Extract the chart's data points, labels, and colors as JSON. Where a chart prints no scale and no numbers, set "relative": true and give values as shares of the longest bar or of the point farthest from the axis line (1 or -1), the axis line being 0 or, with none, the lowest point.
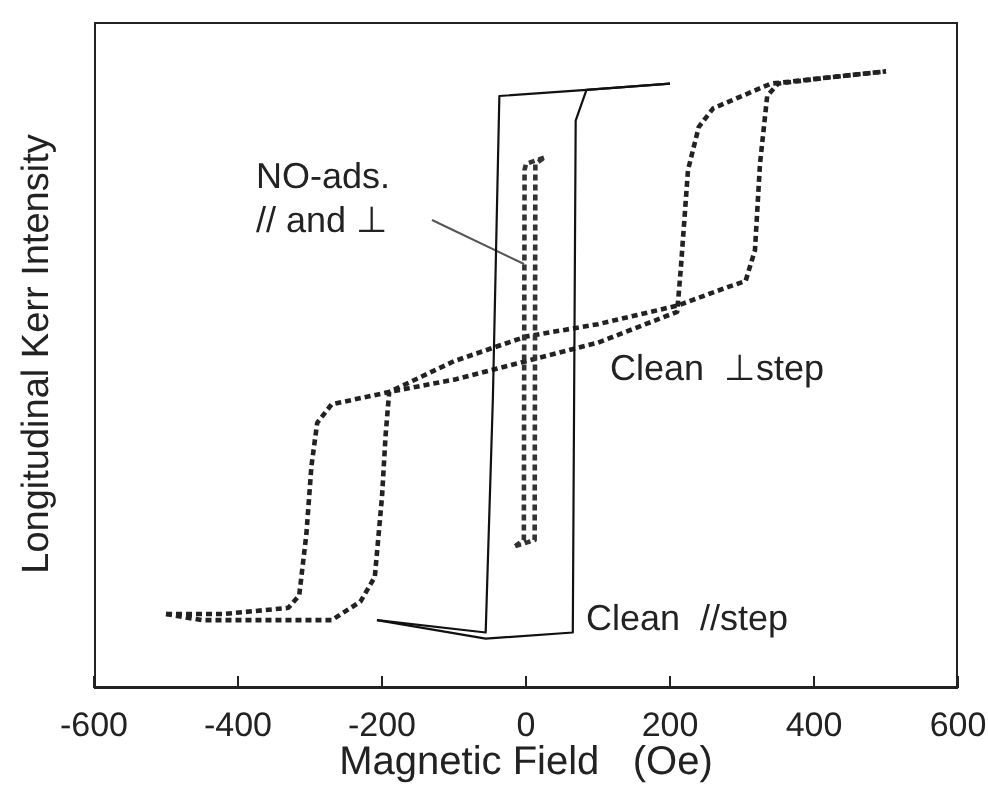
{
  "chart_data": {
    "type": "line",
    "xlabel": "Magnetic Field   (Oe)",
    "ylabel": "Longitudinal Kerr Intensity",
    "relative": true,
    "xlim": [
      -600,
      600
    ],
    "xticks": [
      -600,
      -400,
      -200,
      0,
      200,
      400,
      600
    ],
    "grid": false,
    "legend": false,
    "marker": "none",
    "series": [
      {
        "name": "Clean  ⊥step",
        "color": "#222222",
        "line_style": "dotted",
        "x": [
          -500,
          -420,
          -330,
          -315,
          -305,
          -298,
          -290,
          -270,
          -190,
          -100,
          0,
          100,
          210,
          215,
          225,
          240,
          260,
          300,
          340,
          420,
          500
        ],
        "values": [
          0.12,
          0.12,
          0.13,
          0.15,
          0.25,
          0.36,
          0.43,
          0.46,
          0.48,
          0.5,
          0.53,
          0.56,
          0.61,
          0.68,
          0.84,
          0.91,
          0.94,
          0.96,
          0.98,
          0.99,
          1.0
        ]
      },
      {
        "color": "#222222",
        "line_style": "dotted",
        "x": [
          -500,
          -450,
          -350,
          -270,
          -230,
          -210,
          -200,
          -195,
          -190,
          -100,
          0,
          100,
          210,
          280,
          305,
          318,
          325,
          335,
          350,
          420,
          500
        ],
        "values": [
          0.12,
          0.11,
          0.11,
          0.11,
          0.14,
          0.18,
          0.31,
          0.41,
          0.48,
          0.53,
          0.57,
          0.59,
          0.62,
          0.65,
          0.66,
          0.71,
          0.85,
          0.96,
          0.98,
          0.99,
          1.0
        ]
      },
      {
        "name": "Clean  //step",
        "color": "#111111",
        "line_style": "solid",
        "x": [
          -207,
          -56,
          65,
          69,
          84,
          200
        ],
        "values": [
          0.11,
          0.08,
          0.09,
          0.92,
          0.97,
          0.98
        ]
      },
      {
        "color": "#111111",
        "line_style": "solid",
        "x": [
          -207,
          -56,
          -46,
          -37,
          84,
          200
        ],
        "values": [
          0.11,
          0.09,
          0.47,
          0.96,
          0.97,
          0.98
        ]
      },
      {
        "name": "NO-ads.\n// and ⊥",
        "color": "#333333",
        "line_style": "dotted",
        "x": [
          -15,
          12,
          13,
          25
        ],
        "values": [
          0.23,
          0.24,
          0.85,
          0.86
        ]
      },
      {
        "color": "#333333",
        "line_style": "dotted",
        "x": [
          -15,
          -3,
          -2,
          0,
          25
        ],
        "values": [
          0.23,
          0.24,
          0.84,
          0.85,
          0.86
        ]
      }
    ]
  }
}
